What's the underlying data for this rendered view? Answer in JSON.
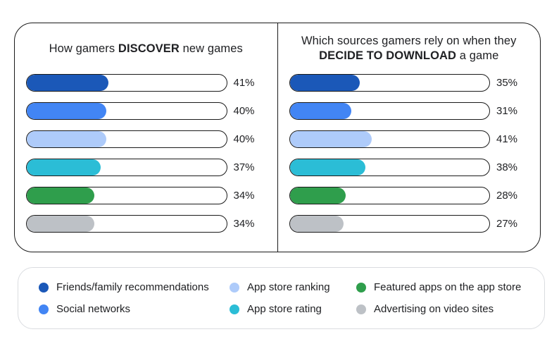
{
  "colors": {
    "dark_blue": "#1B58B8",
    "blue": "#4285F4",
    "light_blue": "#AECBFA",
    "cyan": "#2BBDD6",
    "green": "#2F9E4C",
    "gray": "#BDC1C6",
    "card_border": "#1a1a1a",
    "legend_border": "#dadce0",
    "text": "#202124"
  },
  "chart_data": [
    {
      "type": "bar",
      "panel": "discover",
      "title_lines": [
        {
          "pre": "How gamers ",
          "bold": "DISCOVER",
          "post": " new games"
        }
      ],
      "categories": [
        "Friends/family recommendations",
        "Social networks",
        "App store ranking",
        "App store rating",
        "Featured apps on the app store",
        "Advertising on video sites"
      ],
      "values": [
        41,
        40,
        40,
        37,
        34,
        34
      ],
      "value_labels": [
        "41%",
        "40%",
        "40%",
        "37%",
        "34%",
        "34%"
      ],
      "bar_colors": [
        "#1B58B8",
        "#4285F4",
        "#AECBFA",
        "#2BBDD6",
        "#2F9E4C",
        "#BDC1C6"
      ],
      "xlim": [
        0,
        100
      ],
      "unit": "percent",
      "orientation": "horizontal",
      "grid": false
    },
    {
      "type": "bar",
      "panel": "decide-to-download",
      "title_lines": [
        {
          "pre": "Which sources gamers rely on when they",
          "bold": "",
          "post": ""
        },
        {
          "pre": "",
          "bold": "DECIDE TO DOWNLOAD",
          "post": " a game"
        }
      ],
      "categories": [
        "Friends/family recommendations",
        "Social networks",
        "App store ranking",
        "App store rating",
        "Featured apps on the app store",
        "Advertising on video sites"
      ],
      "values": [
        35,
        31,
        41,
        38,
        28,
        27
      ],
      "value_labels": [
        "35%",
        "31%",
        "41%",
        "38%",
        "28%",
        "27%"
      ],
      "bar_colors": [
        "#1B58B8",
        "#4285F4",
        "#AECBFA",
        "#2BBDD6",
        "#2F9E4C",
        "#BDC1C6"
      ],
      "xlim": [
        0,
        100
      ],
      "unit": "percent",
      "orientation": "horizontal",
      "grid": false
    }
  ],
  "legend": {
    "position": "bottom",
    "items": [
      {
        "label": "Friends/family recommendations",
        "color": "#1B58B8"
      },
      {
        "label": "Social networks",
        "color": "#4285F4"
      },
      {
        "label": "App store ranking",
        "color": "#AECBFA"
      },
      {
        "label": "App store rating",
        "color": "#2BBDD6"
      },
      {
        "label": "Featured apps on the app store",
        "color": "#2F9E4C"
      },
      {
        "label": "Advertising on video sites",
        "color": "#BDC1C6"
      }
    ],
    "grid_order": [
      0,
      2,
      4,
      1,
      3,
      5
    ]
  }
}
